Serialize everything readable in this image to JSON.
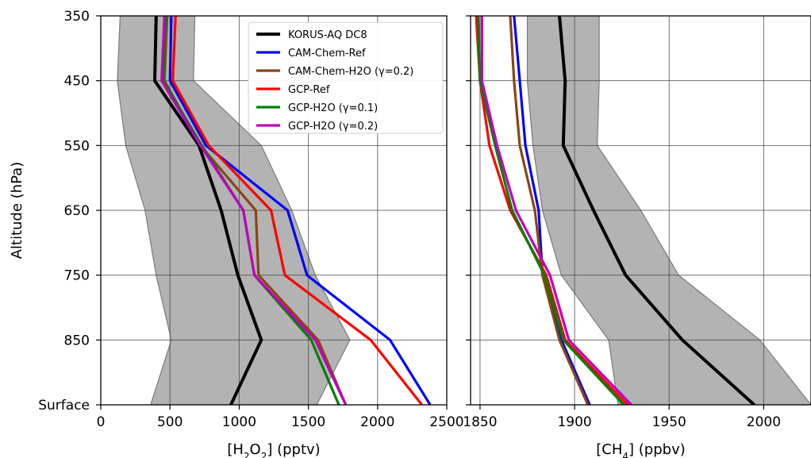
{
  "chart_data": [
    {
      "type": "line",
      "xlabel": "[H2O2] (pptv)",
      "ylabel": "Altitude (hPa)",
      "xlim": [
        0,
        2500
      ],
      "ylim": [
        "Surface",
        "350"
      ],
      "grid": true,
      "x_ticks": [
        "0",
        "500",
        "1000",
        "1500",
        "2000",
        "2500"
      ],
      "y_ticks": [
        "350",
        "450",
        "550",
        "650",
        "750",
        "850",
        "Surface"
      ],
      "legend_position": "top-right",
      "y_levels": [
        "350",
        "450",
        "550",
        "650",
        "750",
        "850",
        "Surface"
      ],
      "band": {
        "lower": [
          140,
          120,
          180,
          320,
          400,
          510,
          360
        ],
        "upper": [
          680,
          670,
          1160,
          1380,
          1550,
          1800,
          1560
        ],
        "color": "#b3b3b3"
      },
      "series": [
        {
          "name": "KORUS-AQ DC8",
          "color": "#000000",
          "x": [
            400,
            390,
            710,
            870,
            990,
            1160,
            940
          ]
        },
        {
          "name": "CAM-Chem-Ref",
          "color": "#0000ff",
          "x": [
            510,
            500,
            760,
            1350,
            1490,
            2090,
            2380
          ]
        },
        {
          "name": "CAM-Chem-H2O (γ=0.2)",
          "color": "#8b4513",
          "x": [
            480,
            460,
            720,
            1120,
            1140,
            1570,
            1770
          ]
        },
        {
          "name": "GCP-Ref",
          "color": "#ff0000",
          "x": [
            540,
            520,
            780,
            1230,
            1330,
            1950,
            2320
          ]
        },
        {
          "name": "GCP-H2O (γ=0.1)",
          "color": "#008000",
          "x": [
            470,
            450,
            730,
            1030,
            1110,
            1520,
            1720
          ]
        },
        {
          "name": "GCP-H2O (γ=0.2)",
          "color": "#bf00bf",
          "x": [
            460,
            440,
            720,
            1030,
            1110,
            1550,
            1770
          ]
        }
      ]
    },
    {
      "type": "line",
      "xlabel": "[CH4] (ppbv)",
      "xlim": [
        1845,
        2025
      ],
      "ylim": [
        "Surface",
        "350"
      ],
      "grid": true,
      "x_ticks": [
        "1850",
        "1900",
        "1950",
        "2000"
      ],
      "y_levels": [
        "350",
        "450",
        "550",
        "650",
        "750",
        "850",
        "Surface"
      ],
      "band": {
        "lower": [
          1875,
          1875,
          1878,
          1883,
          1893,
          1918,
          1923
        ],
        "upper": [
          1913,
          1913,
          1912,
          1935,
          1955,
          1998,
          2025
        ],
        "color": "#b3b3b3"
      },
      "series": [
        {
          "name": "KORUS-AQ DC8",
          "color": "#000000",
          "x": [
            1892,
            1895,
            1894,
            1910,
            1927,
            1957,
            1995
          ]
        },
        {
          "name": "CAM-Chem-Ref",
          "color": "#0000ff",
          "x": [
            1868,
            1871,
            1874,
            1881,
            1883,
            1893,
            1908
          ]
        },
        {
          "name": "CAM-Chem-H2O (γ=0.2)",
          "color": "#8b4513",
          "x": [
            1866,
            1868,
            1871,
            1879,
            1883,
            1892,
            1907
          ]
        },
        {
          "name": "GCP-Ref",
          "color": "#ff0000",
          "x": [
            1848,
            1850,
            1855,
            1866,
            1885,
            1895,
            1928
          ]
        },
        {
          "name": "GCP-H2O (γ=0.1)",
          "color": "#008000",
          "x": [
            1849,
            1850,
            1858,
            1867,
            1884,
            1894,
            1926
          ]
        },
        {
          "name": "GCP-H2O (γ=0.2)",
          "color": "#bf00bf",
          "x": [
            1851,
            1851,
            1859,
            1869,
            1887,
            1897,
            1930
          ]
        }
      ]
    }
  ]
}
